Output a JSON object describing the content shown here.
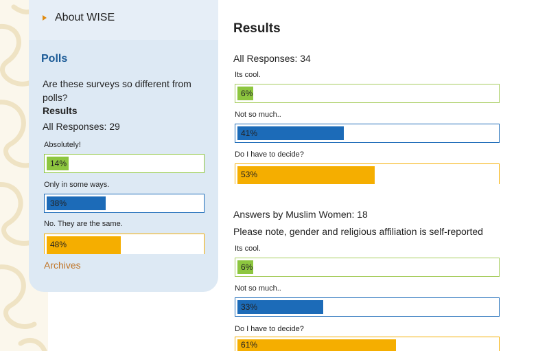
{
  "sidebar": {
    "nav_link": "About WISE",
    "polls_title": "Polls",
    "question": "Are these surveys so different from polls?",
    "results_heading": "Results",
    "all_responses": "All Responses: 29",
    "options": [
      {
        "label": "Absolutely!",
        "percent_text": "14%",
        "percent": 14,
        "color": "#8dc63f",
        "border": "#8dc63f"
      },
      {
        "label": "Only in some ways.",
        "percent_text": "38%",
        "percent": 38,
        "color": "#1c6bb8",
        "border": "#1c6bb8"
      },
      {
        "label": "No. They are the same.",
        "percent_text": "48%",
        "percent": 48,
        "color": "#f5ae00",
        "border": "#f5ae00"
      }
    ],
    "archives_label": "Archives"
  },
  "main": {
    "results_title": "Results",
    "all_responses": "All Responses: 34",
    "all_options": [
      {
        "label": "Its cool.",
        "percent_text": "6%",
        "percent": 6,
        "color": "#8dc63f"
      },
      {
        "label": "Not so much..",
        "percent_text": "41%",
        "percent": 41,
        "color": "#1c6bb8"
      },
      {
        "label": "Do I have to decide?",
        "percent_text": "53%",
        "percent": 53,
        "color": "#f5ae00"
      }
    ],
    "women_responses": "Answers by Muslim Women: 18",
    "note": "Please note, gender and religious affiliation is self-reported",
    "women_options": [
      {
        "label": "Its cool.",
        "percent_text": "6%",
        "percent": 6,
        "color": "#8dc63f"
      },
      {
        "label": "Not so much..",
        "percent_text": "33%",
        "percent": 33,
        "color": "#1c6bb8"
      },
      {
        "label": "Do I have to decide?",
        "percent_text": "61%",
        "percent": 61,
        "color": "#f5ae00"
      }
    ]
  }
}
